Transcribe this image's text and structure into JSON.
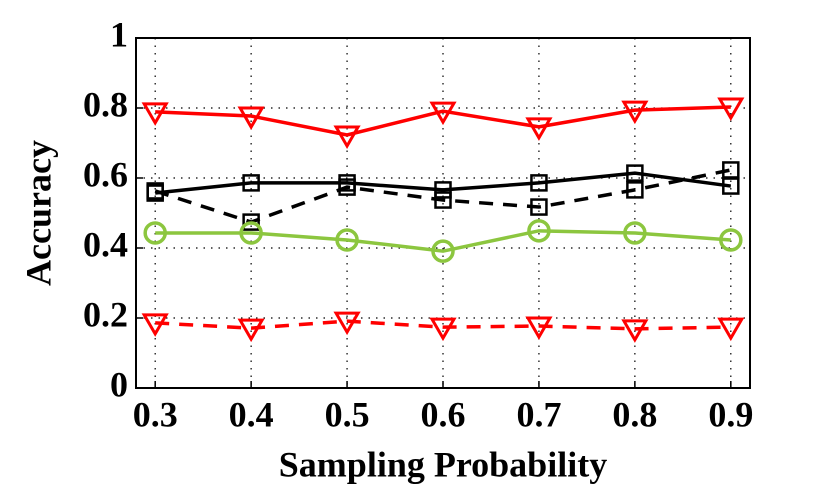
{
  "chart_data": {
    "type": "line",
    "xlabel": "Sampling Probability",
    "ylabel": "Accuracy",
    "x": [
      0.3,
      0.4,
      0.5,
      0.6,
      0.7,
      0.8,
      0.9
    ],
    "xlim": [
      0.28,
      0.92
    ],
    "xticks": [
      0.3,
      0.4,
      0.5,
      0.6,
      0.7,
      0.8,
      0.9
    ],
    "ylim": [
      0,
      1
    ],
    "yticks": [
      0,
      0.2,
      0.4,
      0.6,
      0.8,
      1
    ],
    "grid": true,
    "series": [
      {
        "color": "#ff0000",
        "dash": false,
        "marker": "triangle-down",
        "values": [
          0.789,
          0.777,
          0.723,
          0.791,
          0.746,
          0.794,
          0.803
        ]
      },
      {
        "color": "#000000",
        "dash": false,
        "marker": "square",
        "values": [
          0.557,
          0.586,
          0.586,
          0.566,
          0.586,
          0.614,
          0.577
        ]
      },
      {
        "color": "#000000",
        "dash": true,
        "marker": "square",
        "values": [
          0.563,
          0.474,
          0.574,
          0.537,
          0.517,
          0.566,
          0.623
        ]
      },
      {
        "color": "#8cc63f",
        "dash": false,
        "marker": "circle",
        "values": [
          0.443,
          0.443,
          0.423,
          0.391,
          0.449,
          0.443,
          0.423
        ]
      },
      {
        "color": "#ff0000",
        "dash": true,
        "marker": "triangle-down",
        "values": [
          0.186,
          0.171,
          0.191,
          0.174,
          0.177,
          0.169,
          0.174
        ]
      }
    ]
  }
}
